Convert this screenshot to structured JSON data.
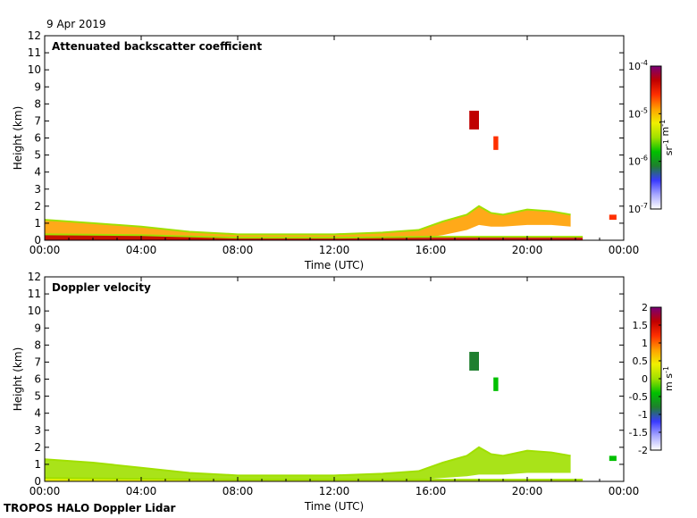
{
  "date_label": "9 Apr 2019",
  "footer_label": "TROPOS HALO Doppler Lidar",
  "colormap": [
    "#ffffff",
    "#a8a8ff",
    "#3a3aff",
    "#1f7f2f",
    "#00c000",
    "#a0e000",
    "#f0f000",
    "#ffa000",
    "#ff3000",
    "#c00000",
    "#780078"
  ],
  "chart_data": [
    {
      "type": "heatmap",
      "title": "Attenuated backscatter coefficient",
      "xlabel": "Time (UTC)",
      "ylabel": "Height (km)",
      "xticks": [
        "00:00",
        "04:00",
        "08:00",
        "12:00",
        "16:00",
        "20:00",
        "00:00"
      ],
      "yticks": [
        "0",
        "1",
        "2",
        "3",
        "4",
        "5",
        "6",
        "7",
        "8",
        "9",
        "10",
        "11",
        "12"
      ],
      "ylim": [
        0,
        12
      ],
      "xlim_hours": [
        0,
        24
      ],
      "colorbar": {
        "scale": "log",
        "range": [
          1e-07,
          0.0001
        ],
        "ticks": [
          {
            "base": "10",
            "exp": "-7",
            "frac": 0
          },
          {
            "base": "10",
            "exp": "-6",
            "frac": 0.3333
          },
          {
            "base": "10",
            "exp": "-5",
            "frac": 0.6667
          },
          {
            "base": "10",
            "exp": "-4",
            "frac": 1
          }
        ],
        "unit_parts": [
          {
            "t": "sr"
          },
          {
            "t": "-1",
            "sup": true
          },
          {
            "t": " m"
          },
          {
            "t": "-1",
            "sup": true
          }
        ]
      },
      "layers": [
        {
          "name": "boundary layer",
          "x": [
            0,
            2,
            4,
            6,
            8,
            10,
            12,
            14,
            15.5,
            16.5,
            17.5,
            18,
            18.5,
            19,
            20,
            21,
            21.8
          ],
          "top": [
            1.2,
            1.0,
            0.8,
            0.5,
            0.35,
            0.35,
            0.35,
            0.45,
            0.6,
            1.1,
            1.5,
            2.0,
            1.6,
            1.5,
            1.8,
            1.7,
            1.5
          ],
          "bottom": [
            0.05,
            0.05,
            0.05,
            0.05,
            0.05,
            0.05,
            0.05,
            0.05,
            0.1,
            0.3,
            0.6,
            0.9,
            0.8,
            0.8,
            0.9,
            0.9,
            0.8
          ],
          "value_frac": 0.65
        },
        {
          "name": "surface layer",
          "x": [
            0,
            4,
            8,
            12,
            16,
            22.3
          ],
          "top": [
            0.35,
            0.3,
            0.15,
            0.15,
            0.2,
            0.2
          ],
          "bottom": [
            0.0,
            0.0,
            0.0,
            0.0,
            0.0,
            0.0
          ],
          "value_frac": 0.9
        }
      ],
      "patches": [
        {
          "x0": 17.6,
          "x1": 18.0,
          "y0": 6.5,
          "y1": 7.6,
          "value_frac": 0.85
        },
        {
          "x0": 18.6,
          "x1": 18.8,
          "y0": 5.3,
          "y1": 6.1,
          "value_frac": 0.8
        },
        {
          "x0": 23.4,
          "x1": 23.7,
          "y0": 1.2,
          "y1": 1.5,
          "value_frac": 0.75
        }
      ]
    },
    {
      "type": "heatmap",
      "title": "Doppler velocity",
      "xlabel": "Time (UTC)",
      "ylabel": "Height (km)",
      "xticks": [
        "00:00",
        "04:00",
        "08:00",
        "12:00",
        "16:00",
        "20:00",
        "00:00"
      ],
      "yticks": [
        "0",
        "1",
        "2",
        "3",
        "4",
        "5",
        "6",
        "7",
        "8",
        "9",
        "10",
        "11",
        "12"
      ],
      "ylim": [
        0,
        12
      ],
      "xlim_hours": [
        0,
        24
      ],
      "colorbar": {
        "scale": "linear",
        "range": [
          -2,
          2
        ],
        "ticks": [
          {
            "label": "2",
            "frac": 1
          },
          {
            "label": "1.5",
            "frac": 0.875
          },
          {
            "label": "1",
            "frac": 0.75
          },
          {
            "label": "0.5",
            "frac": 0.625
          },
          {
            "label": "0",
            "frac": 0.5
          },
          {
            "label": "-0.5",
            "frac": 0.375
          },
          {
            "label": "-1",
            "frac": 0.25
          },
          {
            "label": "-1.5",
            "frac": 0.125
          },
          {
            "label": "-2",
            "frac": 0
          }
        ],
        "unit_parts": [
          {
            "t": "m s"
          },
          {
            "t": "-1",
            "sup": true
          }
        ]
      },
      "layers": [
        {
          "name": "boundary layer",
          "x": [
            0,
            2,
            4,
            6,
            8,
            10,
            12,
            14,
            15.5,
            16.5,
            17.5,
            18,
            18.5,
            19,
            20,
            21,
            21.8
          ],
          "top": [
            1.3,
            1.1,
            0.8,
            0.5,
            0.35,
            0.35,
            0.35,
            0.45,
            0.6,
            1.1,
            1.5,
            2.0,
            1.6,
            1.5,
            1.8,
            1.7,
            1.5
          ],
          "bottom": [
            0.05,
            0.05,
            0.05,
            0.05,
            0.05,
            0.05,
            0.05,
            0.05,
            0.1,
            0.2,
            0.3,
            0.4,
            0.4,
            0.4,
            0.5,
            0.5,
            0.5
          ],
          "value_frac": 0.45
        },
        {
          "name": "surface layer",
          "x": [
            0,
            4,
            8,
            12,
            16,
            22.3
          ],
          "top": [
            0.2,
            0.15,
            0.1,
            0.1,
            0.1,
            0.1
          ],
          "bottom": [
            0.0,
            0.0,
            0.0,
            0.0,
            0.0,
            0.0
          ],
          "value_frac": 0.6
        }
      ],
      "patches": [
        {
          "x0": 17.6,
          "x1": 18.0,
          "y0": 6.5,
          "y1": 7.6,
          "value_frac": 0.25
        },
        {
          "x0": 18.6,
          "x1": 18.8,
          "y0": 5.3,
          "y1": 6.1,
          "value_frac": 0.4
        },
        {
          "x0": 23.4,
          "x1": 23.7,
          "y0": 1.2,
          "y1": 1.5,
          "value_frac": 0.35
        }
      ]
    }
  ]
}
